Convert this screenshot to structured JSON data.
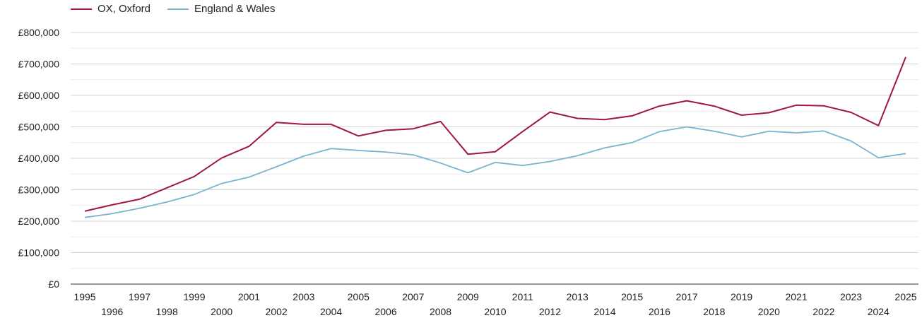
{
  "chart_data": {
    "type": "line",
    "title": "",
    "xlabel": "",
    "ylabel": "",
    "x": [
      1995,
      1996,
      1997,
      1998,
      1999,
      2000,
      2001,
      2002,
      2003,
      2004,
      2005,
      2006,
      2007,
      2008,
      2009,
      2010,
      2011,
      2012,
      2013,
      2014,
      2015,
      2016,
      2017,
      2018,
      2019,
      2020,
      2021,
      2022,
      2023,
      2024,
      2025
    ],
    "y_ticks": [
      "£0",
      "£100,000",
      "£200,000",
      "£300,000",
      "£400,000",
      "£500,000",
      "£600,000",
      "£700,000",
      "£800,000"
    ],
    "ylim": [
      0,
      800000
    ],
    "grid": true,
    "legend_position": "top-left",
    "series": [
      {
        "name": "OX, Oxford",
        "color": "#a0183c",
        "values": [
          232000,
          252000,
          270000,
          306000,
          342000,
          401000,
          438000,
          514000,
          508000,
          508000,
          471000,
          489000,
          494000,
          517000,
          413000,
          421000,
          485000,
          547000,
          527000,
          523000,
          535000,
          566000,
          583000,
          566000,
          537000,
          545000,
          569000,
          567000,
          546000,
          504000,
          722000
        ]
      },
      {
        "name": "England & Wales",
        "color": "#7ab2cf",
        "values": [
          212000,
          224000,
          241000,
          261000,
          285000,
          320000,
          340000,
          373000,
          407000,
          431000,
          425000,
          420000,
          411000,
          385000,
          354000,
          387000,
          377000,
          390000,
          408000,
          433000,
          450000,
          485000,
          500000,
          486000,
          468000,
          486000,
          481000,
          487000,
          455000,
          402000,
          415000
        ]
      }
    ]
  }
}
